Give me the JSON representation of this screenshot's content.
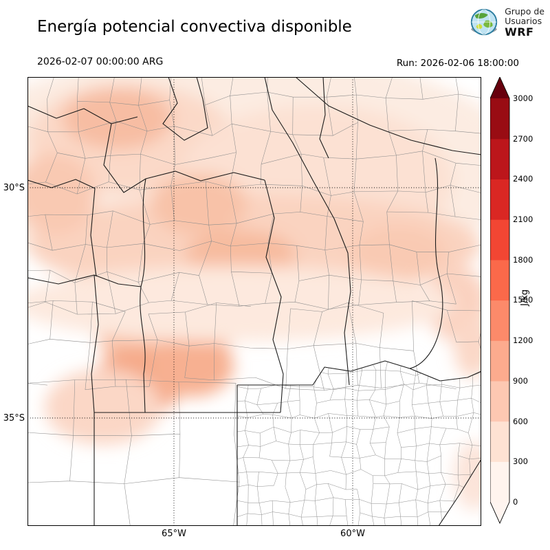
{
  "header": {
    "title": "Energía potencial convectiva disponible",
    "logo": {
      "line1": "Grupo de",
      "line2": "Usuarios",
      "line3": "WRF"
    }
  },
  "subheader": {
    "valid_time": "2026-02-07 00:00:00 ARG",
    "run": "Run: 2026-02-06 18:00:00"
  },
  "axes": {
    "lat_ticks": [
      "30°S",
      "35°S"
    ],
    "lon_ticks": [
      "65°W",
      "60°W"
    ]
  },
  "colorbar": {
    "unit": "J/kg",
    "ticks_top_to_bottom": [
      "3000",
      "2700",
      "2400",
      "2100",
      "1800",
      "1500",
      "1200",
      "900",
      "600",
      "300",
      "0"
    ],
    "segment_colors_bottom_to_top": [
      "#fff4ee",
      "#fee2d3",
      "#fdc8b2",
      "#fcab8e",
      "#fc8a6a",
      "#fb694a",
      "#f24633",
      "#da2723",
      "#bc161b",
      "#990c13"
    ],
    "over_color": "#67000d",
    "under_color": "#fff5f0"
  },
  "chart_data": {
    "type": "heatmap",
    "title": "Energía potencial convectiva disponible",
    "unit": "J/kg",
    "levels": [
      0,
      300,
      600,
      900,
      1200,
      1500,
      1800,
      2100,
      2400,
      2700,
      3000
    ],
    "colormap": "Reds",
    "graticule": {
      "lat": [
        "30°S",
        "35°S"
      ],
      "lon": [
        "65°W",
        "60°W"
      ]
    },
    "valid_time": "2026-02-07 00:00:00 ARG",
    "run_time": "2026-02-06 18:00:00",
    "field_summary": "Light CAPE shading (~0-900 J/kg) over the northern half of the domain with stronger patches west-central (around 31-33S / 65-66W); southern half mostly near 0 J/kg."
  }
}
